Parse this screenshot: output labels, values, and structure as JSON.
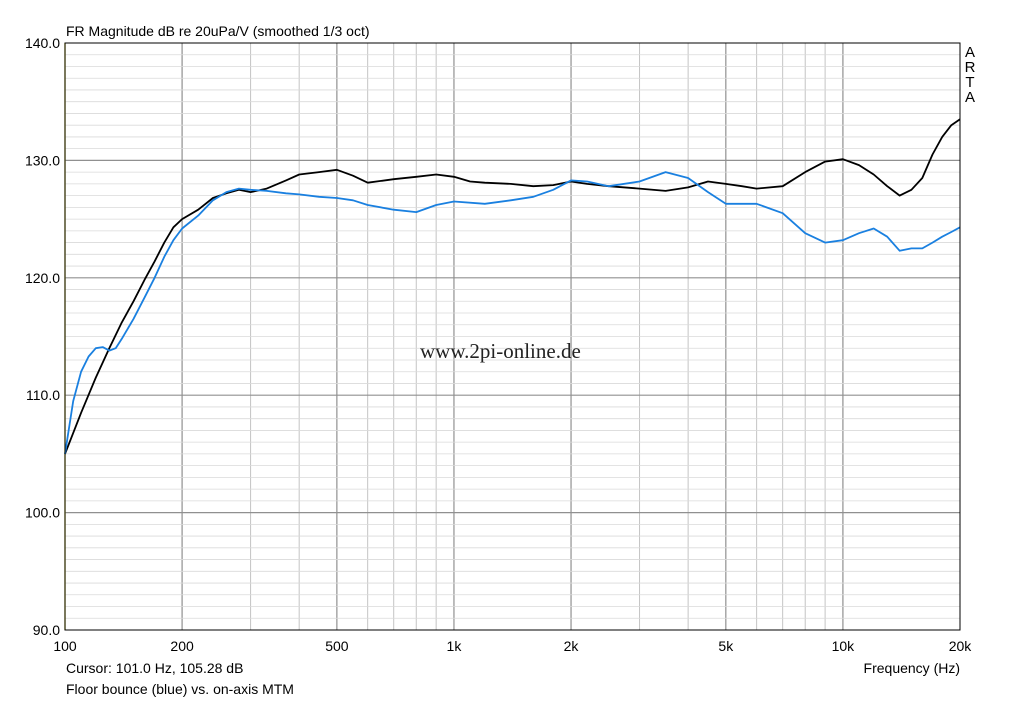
{
  "chart_data": {
    "type": "line",
    "title": "FR Magnitude dB re 20uPa/V (smoothed 1/3 oct)",
    "xlabel": "Frequency (Hz)",
    "ylabel": "",
    "x_scale": "log",
    "xlim": [
      100,
      20000
    ],
    "ylim": [
      90,
      140
    ],
    "grid": true,
    "x_tick_labels": [
      {
        "value": 100,
        "label": "100"
      },
      {
        "value": 200,
        "label": "200"
      },
      {
        "value": 500,
        "label": "500"
      },
      {
        "value": 1000,
        "label": "1k"
      },
      {
        "value": 2000,
        "label": "2k"
      },
      {
        "value": 5000,
        "label": "5k"
      },
      {
        "value": 10000,
        "label": "10k"
      },
      {
        "value": 20000,
        "label": "20k"
      }
    ],
    "y_tick_labels": [
      {
        "value": 90,
        "label": "90.0"
      },
      {
        "value": 100,
        "label": "100.0"
      },
      {
        "value": 110,
        "label": "110.0"
      },
      {
        "value": 120,
        "label": "120.0"
      },
      {
        "value": 130,
        "label": "130.0"
      },
      {
        "value": 140,
        "label": "140.0"
      }
    ],
    "series": [
      {
        "color": "#000000",
        "x": [
          100,
          110,
          120,
          130,
          140,
          150,
          160,
          170,
          180,
          190,
          200,
          220,
          240,
          260,
          280,
          300,
          330,
          370,
          400,
          450,
          500,
          550,
          600,
          700,
          800,
          900,
          1000,
          1100,
          1200,
          1400,
          1600,
          1800,
          2000,
          2200,
          2500,
          3000,
          3500,
          4000,
          4500,
          5000,
          5500,
          6000,
          7000,
          8000,
          9000,
          10000,
          11000,
          12000,
          13000,
          14000,
          15000,
          16000,
          17000,
          18000,
          19000,
          20000
        ],
        "y": [
          105.0,
          108.5,
          111.5,
          114.0,
          116.2,
          118.0,
          119.8,
          121.4,
          123.0,
          124.3,
          125.0,
          125.8,
          126.8,
          127.2,
          127.5,
          127.3,
          127.6,
          128.3,
          128.8,
          129.0,
          129.2,
          128.7,
          128.1,
          128.4,
          128.6,
          128.8,
          128.6,
          128.2,
          128.1,
          128.0,
          127.8,
          127.9,
          128.2,
          128.0,
          127.8,
          127.6,
          127.4,
          127.7,
          128.2,
          128.0,
          127.8,
          127.6,
          127.8,
          129.0,
          129.9,
          130.1,
          129.6,
          128.8,
          127.8,
          127.0,
          127.5,
          128.5,
          130.5,
          132.0,
          133.0,
          133.5
        ]
      },
      {
        "color": "#1a80e0",
        "x": [
          100,
          105,
          110,
          115,
          120,
          125,
          130,
          135,
          140,
          150,
          160,
          170,
          180,
          190,
          200,
          220,
          240,
          260,
          280,
          300,
          330,
          370,
          400,
          450,
          500,
          550,
          600,
          700,
          800,
          900,
          1000,
          1200,
          1400,
          1600,
          1800,
          2000,
          2200,
          2500,
          3000,
          3500,
          4000,
          4500,
          5000,
          5500,
          6000,
          7000,
          8000,
          9000,
          10000,
          11000,
          12000,
          13000,
          14000,
          15000,
          16000,
          17000,
          18000,
          19000,
          20000
        ],
        "y": [
          105.0,
          109.5,
          112.0,
          113.3,
          114.0,
          114.1,
          113.8,
          114.0,
          114.8,
          116.5,
          118.3,
          120.0,
          121.8,
          123.2,
          124.2,
          125.3,
          126.6,
          127.3,
          127.6,
          127.5,
          127.4,
          127.2,
          127.1,
          126.9,
          126.8,
          126.6,
          126.2,
          125.8,
          125.6,
          126.2,
          126.5,
          126.3,
          126.6,
          126.9,
          127.5,
          128.3,
          128.2,
          127.8,
          128.2,
          129.0,
          128.5,
          127.3,
          126.3,
          126.3,
          126.3,
          125.5,
          123.8,
          123.0,
          123.2,
          123.8,
          124.2,
          123.5,
          122.3,
          122.5,
          122.5,
          123.0,
          123.5,
          123.9,
          124.3
        ]
      }
    ],
    "annotations": {
      "watermark": "www.2pi-online.de",
      "brand": [
        "A",
        "R",
        "T",
        "A"
      ]
    }
  },
  "footer": {
    "cursor": "Cursor: 101.0 Hz, 105.28 dB",
    "caption": "Floor bounce (blue) vs. on-axis MTM"
  },
  "colors": {
    "plot_bg": "#ffffff",
    "grid": "#a8a8a8",
    "frame": "#000000"
  }
}
